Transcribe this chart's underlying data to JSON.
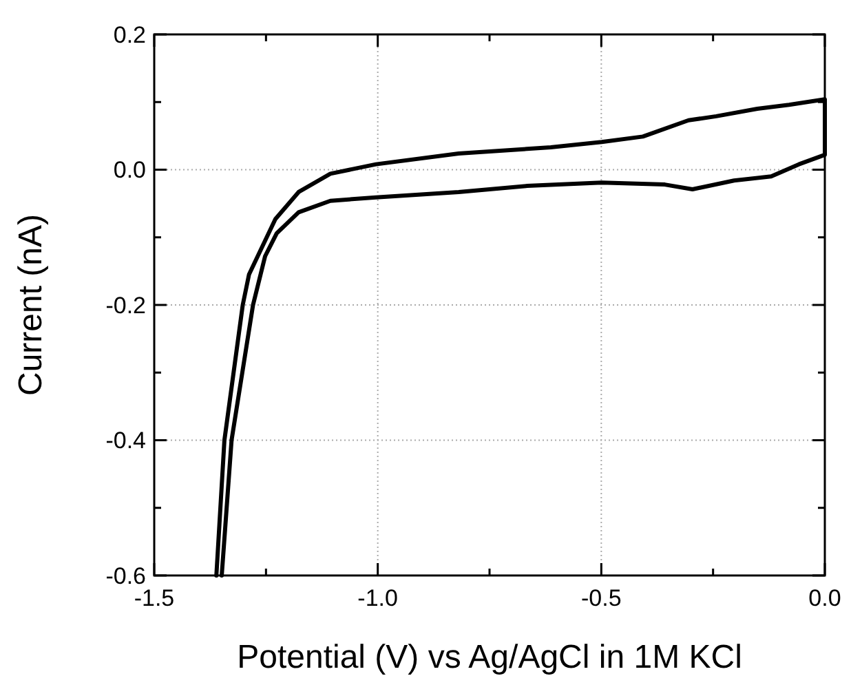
{
  "chart_data": {
    "type": "line",
    "xlabel": "Potential (V) vs Ag/AgCl in 1M KCl",
    "ylabel": "Current (nA)",
    "xlim": [
      -1.5,
      0.0
    ],
    "ylim": [
      -0.6,
      0.2
    ],
    "xticks": [
      {
        "value": -1.5,
        "label": "-1.5"
      },
      {
        "value": -1.25,
        "label": null
      },
      {
        "value": -1.0,
        "label": "-1.0"
      },
      {
        "value": -0.75,
        "label": null
      },
      {
        "value": -0.5,
        "label": "-0.5"
      },
      {
        "value": -0.25,
        "label": null
      },
      {
        "value": 0,
        "label": "0.0"
      }
    ],
    "yticks": [
      {
        "value": -0.6,
        "label": "-0.6"
      },
      {
        "value": -0.5,
        "label": null
      },
      {
        "value": -0.4,
        "label": "-0.4"
      },
      {
        "value": -0.3,
        "label": null
      },
      {
        "value": -0.2,
        "label": "-0.2"
      },
      {
        "value": -0.1,
        "label": null
      },
      {
        "value": 0,
        "label": "0.0"
      },
      {
        "value": 0.1,
        "label": null
      },
      {
        "value": 0.2,
        "label": "0.2"
      }
    ],
    "grid": true,
    "marker": "none",
    "line_style": "solid",
    "series": [
      {
        "color": "#000000",
        "x": [
          -1.361,
          -1.343,
          -1.302,
          -1.288,
          -1.229,
          -1.177,
          -1.106,
          -1.004,
          -0.819,
          -0.613,
          -0.499,
          -0.407,
          -0.305,
          -0.243,
          -0.151,
          -0.08,
          0.0,
          0.0,
          -0.058,
          -0.12,
          -0.203,
          -0.296,
          -0.358,
          -0.499,
          -0.666,
          -0.819,
          -1.004,
          -1.106,
          -1.177,
          -1.226,
          -1.252,
          -1.279,
          -1.327,
          -1.349
        ],
        "values": [
          -0.6,
          -0.4,
          -0.2,
          -0.155,
          -0.073,
          -0.033,
          -0.006,
          0.008,
          0.024,
          0.033,
          0.041,
          0.049,
          0.073,
          0.079,
          0.09,
          0.096,
          0.104,
          0.022,
          0.008,
          -0.01,
          -0.016,
          -0.029,
          -0.022,
          -0.019,
          -0.024,
          -0.033,
          -0.041,
          -0.046,
          -0.063,
          -0.094,
          -0.128,
          -0.2,
          -0.4,
          -0.6
        ]
      }
    ]
  }
}
